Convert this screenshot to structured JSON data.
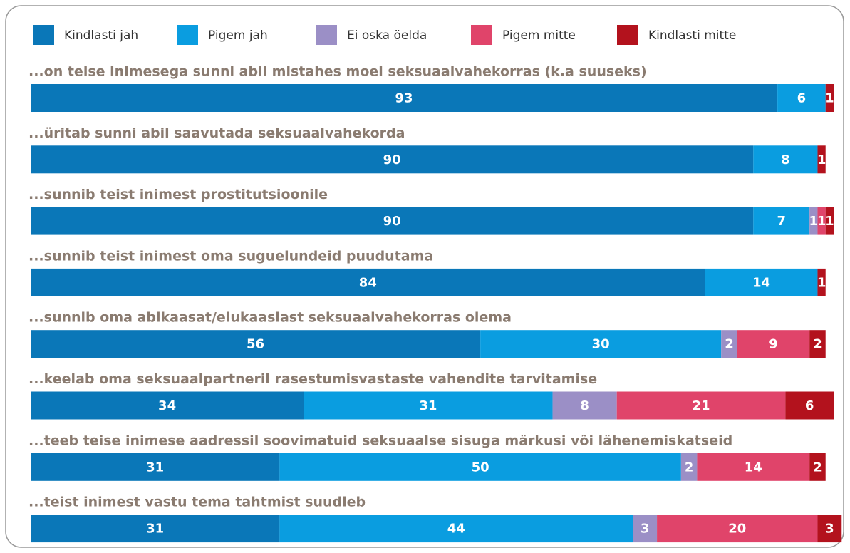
{
  "chart_data": {
    "type": "stacked-bar-horizontal",
    "categories": [
      "...on teise inimesega sunni abil mistahes moel seksuaalvahekorras (k.a suuseks)",
      "...üritab sunni abil saavutada seksuaalvahekorda",
      "...sunnib teist inimest prostitutsioonile",
      "...sunnib teist inimest oma suguelundeid puudutama",
      "...sunnib oma abikaasat/elukaaslast seksuaalvahekorras olema",
      "...keelab oma seksuaalpartneril rasestumisvastaste vahendite tarvitamise",
      "...teeb teise inimese aadressil soovimatuid seksuaalse sisuga märkusi või lähenemiskatseid",
      "...teist inimest vastu tema tahtmist suudleb"
    ],
    "series": [
      {
        "name": "Kindlasti jah",
        "color": "#0a77b8",
        "values": [
          93,
          90,
          90,
          84,
          56,
          34,
          31,
          31
        ]
      },
      {
        "name": "Pigem jah",
        "color": "#0a9de0",
        "values": [
          6,
          8,
          7,
          14,
          30,
          31,
          50,
          44
        ]
      },
      {
        "name": "Ei oska öelda",
        "color": "#9b8fc6",
        "values": [
          0,
          0,
          1,
          0,
          2,
          8,
          2,
          3
        ]
      },
      {
        "name": "Pigem mitte",
        "color": "#e0446a",
        "values": [
          0,
          0,
          1,
          0,
          9,
          21,
          14,
          20
        ]
      },
      {
        "name": "Kindlasti mitte",
        "color": "#b3121d",
        "values": [
          1,
          1,
          1,
          1,
          2,
          6,
          2,
          3
        ]
      }
    ],
    "xlim": [
      0,
      100
    ],
    "legend": "top"
  }
}
